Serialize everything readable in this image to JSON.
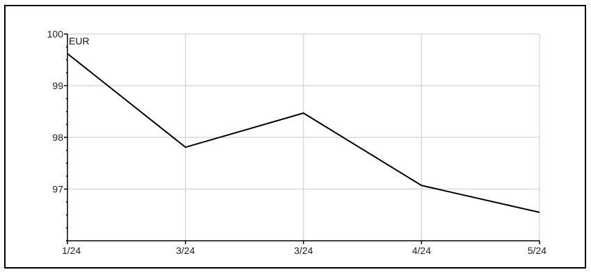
{
  "chart_data": {
    "type": "line",
    "title": "",
    "xlabel": "",
    "ylabel": "",
    "unit": "EUR",
    "x": [
      "1/24",
      "3/24",
      "3/24",
      "4/24",
      "5/24"
    ],
    "series": [
      {
        "values": [
          99.62,
          97.81,
          98.47,
          97.07,
          96.55
        ]
      }
    ],
    "ylim": [
      96.0,
      100.0
    ],
    "yticks": [
      97,
      98,
      99,
      100
    ],
    "ytick_labels": [
      "97",
      "98",
      "99",
      "100"
    ],
    "grid": true,
    "legend": "none",
    "colors": {
      "line": "#000000",
      "grid": "#d8d8e0",
      "axis": "#000000",
      "background": "#ffffff"
    }
  }
}
